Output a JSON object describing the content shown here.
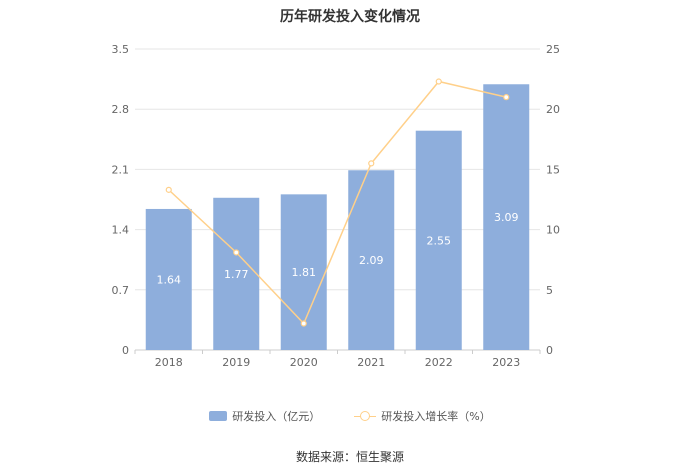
{
  "chart_data": {
    "type": "bar",
    "title": "历年研发投入变化情况",
    "categories": [
      "2018",
      "2019",
      "2020",
      "2021",
      "2022",
      "2023"
    ],
    "series": [
      {
        "name": "研发投入（亿元）",
        "type": "bar",
        "axis": "left",
        "values": [
          1.64,
          1.77,
          1.81,
          2.09,
          2.55,
          3.09
        ],
        "labels": [
          "1.64",
          "1.77",
          "1.81",
          "2.09",
          "2.55",
          "3.09"
        ]
      },
      {
        "name": "研发投入增长率（%）",
        "type": "line",
        "axis": "right",
        "values": [
          13.3,
          8.1,
          2.2,
          15.5,
          22.3,
          21.0
        ]
      }
    ],
    "y_left": {
      "min": 0,
      "max": 3.5,
      "ticks": [
        "0",
        "0.7",
        "1.4",
        "2.1",
        "2.8",
        "3.5"
      ]
    },
    "y_right": {
      "min": 0,
      "max": 25,
      "ticks": [
        "0",
        "5",
        "10",
        "15",
        "20",
        "25"
      ]
    },
    "grid": true,
    "legend_position": "bottom",
    "colors": {
      "bar": "#8eaedc",
      "line": "#ffd08a",
      "grid": "#e6e6e6",
      "axis_text": "#666666"
    }
  },
  "source": "数据来源：恒生聚源"
}
